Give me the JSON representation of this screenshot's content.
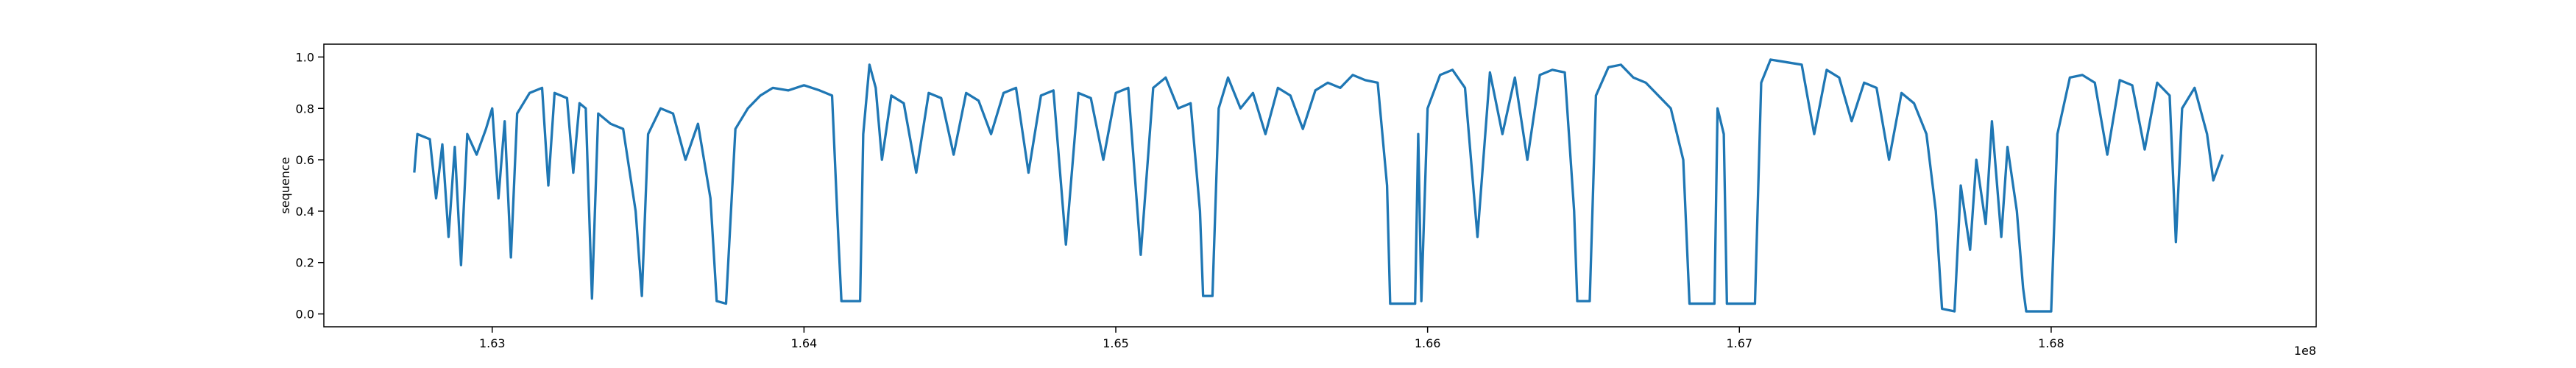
{
  "chart_data": {
    "type": "line",
    "ylabel": "sequence",
    "x_offset_label": "1e8",
    "color": "#1f77b4",
    "xlim": [
      162460000,
      168850000
    ],
    "xticks": [
      {
        "value": 163000000,
        "label": "1.63"
      },
      {
        "value": 164000000,
        "label": "1.64"
      },
      {
        "value": 165000000,
        "label": "1.65"
      },
      {
        "value": 166000000,
        "label": "1.66"
      },
      {
        "value": 167000000,
        "label": "1.67"
      },
      {
        "value": 168000000,
        "label": "1.68"
      }
    ],
    "ylim": [
      -0.05,
      1.05
    ],
    "yticks": [
      {
        "value": 0,
        "label": "0.0"
      },
      0.2,
      0.4,
      0.6,
      0.8,
      {
        "value": 1,
        "label": "1.0"
      }
    ],
    "x": [
      162750000,
      162760000,
      162800000,
      162820000,
      162840000,
      162860000,
      162880000,
      162900000,
      162920000,
      162950000,
      162980000,
      163000000,
      163020000,
      163040000,
      163060000,
      163080000,
      163120000,
      163160000,
      163180000,
      163200000,
      163240000,
      163260000,
      163280000,
      163300000,
      163320000,
      163340000,
      163380000,
      163420000,
      163460000,
      163480000,
      163500000,
      163540000,
      163580000,
      163620000,
      163660000,
      163700000,
      163720000,
      163750000,
      163780000,
      163820000,
      163860000,
      163900000,
      163950000,
      164000000,
      164050000,
      164090000,
      164110000,
      164120000,
      164180000,
      164190000,
      164210000,
      164230000,
      164250000,
      164280000,
      164320000,
      164360000,
      164400000,
      164440000,
      164480000,
      164520000,
      164560000,
      164600000,
      164640000,
      164680000,
      164720000,
      164760000,
      164800000,
      164840000,
      164880000,
      164920000,
      164960000,
      165000000,
      165040000,
      165080000,
      165120000,
      165160000,
      165200000,
      165240000,
      165270000,
      165280000,
      165310000,
      165330000,
      165360000,
      165400000,
      165440000,
      165480000,
      165520000,
      165560000,
      165600000,
      165640000,
      165680000,
      165720000,
      165760000,
      165800000,
      165840000,
      165870000,
      165880000,
      165960000,
      165970000,
      165980000,
      166000000,
      166040000,
      166080000,
      166120000,
      166160000,
      166200000,
      166240000,
      166280000,
      166320000,
      166360000,
      166400000,
      166440000,
      166470000,
      166480000,
      166520000,
      166540000,
      166580000,
      166620000,
      166660000,
      166700000,
      166740000,
      166780000,
      166820000,
      166840000,
      166920000,
      166930000,
      166950000,
      166960000,
      167050000,
      167070000,
      167100000,
      167150000,
      167200000,
      167240000,
      167280000,
      167320000,
      167360000,
      167400000,
      167440000,
      167480000,
      167520000,
      167560000,
      167600000,
      167630000,
      167650000,
      167690000,
      167710000,
      167740000,
      167760000,
      167790000,
      167810000,
      167840000,
      167860000,
      167890000,
      167910000,
      167920000,
      168000000,
      168020000,
      168060000,
      168100000,
      168140000,
      168180000,
      168220000,
      168260000,
      168300000,
      168340000,
      168380000,
      168400000,
      168420000,
      168460000,
      168500000,
      168520000,
      168550000
    ],
    "values": [
      0.55,
      0.7,
      0.68,
      0.45,
      0.66,
      0.3,
      0.65,
      0.19,
      0.7,
      0.62,
      0.72,
      0.8,
      0.45,
      0.75,
      0.22,
      0.78,
      0.86,
      0.88,
      0.5,
      0.86,
      0.84,
      0.55,
      0.82,
      0.8,
      0.06,
      0.78,
      0.74,
      0.72,
      0.4,
      0.07,
      0.7,
      0.8,
      0.78,
      0.6,
      0.74,
      0.45,
      0.05,
      0.04,
      0.72,
      0.8,
      0.85,
      0.88,
      0.87,
      0.89,
      0.87,
      0.85,
      0.3,
      0.05,
      0.05,
      0.7,
      0.97,
      0.88,
      0.6,
      0.85,
      0.82,
      0.55,
      0.86,
      0.84,
      0.62,
      0.86,
      0.83,
      0.7,
      0.86,
      0.88,
      0.55,
      0.85,
      0.87,
      0.27,
      0.86,
      0.84,
      0.6,
      0.86,
      0.88,
      0.23,
      0.88,
      0.92,
      0.8,
      0.82,
      0.4,
      0.07,
      0.07,
      0.8,
      0.92,
      0.8,
      0.86,
      0.7,
      0.88,
      0.85,
      0.72,
      0.87,
      0.9,
      0.88,
      0.93,
      0.91,
      0.9,
      0.5,
      0.04,
      0.04,
      0.7,
      0.05,
      0.8,
      0.93,
      0.95,
      0.88,
      0.3,
      0.94,
      0.7,
      0.92,
      0.6,
      0.93,
      0.95,
      0.94,
      0.4,
      0.05,
      0.05,
      0.85,
      0.96,
      0.97,
      0.92,
      0.9,
      0.85,
      0.8,
      0.6,
      0.04,
      0.04,
      0.8,
      0.7,
      0.04,
      0.04,
      0.9,
      0.99,
      0.98,
      0.97,
      0.7,
      0.95,
      0.92,
      0.75,
      0.9,
      0.88,
      0.6,
      0.86,
      0.82,
      0.7,
      0.4,
      0.02,
      0.01,
      0.5,
      0.25,
      0.6,
      0.35,
      0.75,
      0.3,
      0.65,
      0.4,
      0.1,
      0.01,
      0.01,
      0.7,
      0.92,
      0.93,
      0.9,
      0.62,
      0.91,
      0.89,
      0.64,
      0.9,
      0.85,
      0.28,
      0.8,
      0.88,
      0.7,
      0.52,
      0.62
    ]
  }
}
